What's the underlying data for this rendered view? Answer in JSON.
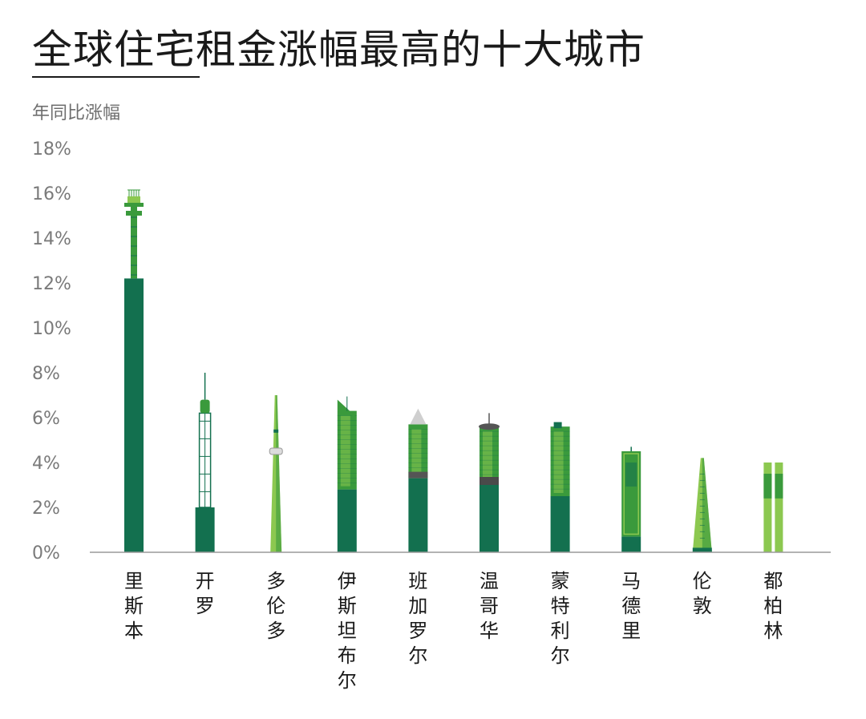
{
  "chart_data": {
    "type": "bar",
    "title": "全球住宅租金涨幅最高的十大城市",
    "ylabel": "年同比涨幅",
    "xlabel": "",
    "ylim": [
      0,
      18
    ],
    "yticks": [
      "0%",
      "2%",
      "4%",
      "6%",
      "8%",
      "10%",
      "12%",
      "14%",
      "16%",
      "18%"
    ],
    "grid": false,
    "categories": [
      "里斯本",
      "开罗",
      "多伦多",
      "伊斯坦布尔",
      "班加罗尔",
      "温哥华",
      "蒙特利尔",
      "马德里",
      "伦敦",
      "都柏林"
    ],
    "values": [
      16.0,
      8.0,
      7.0,
      6.8,
      6.4,
      6.2,
      5.8,
      4.7,
      4.2,
      4.0
    ],
    "base_values": [
      12.2,
      2.0,
      0,
      2.8,
      3.3,
      3.0,
      2.5,
      0.7,
      0.2,
      0
    ],
    "colors": {
      "dark": "#13704f",
      "mid": "#3a9a3c",
      "light": "#8cc850",
      "pale": "#c8e6a0",
      "axis": "#9a9a9a"
    }
  }
}
